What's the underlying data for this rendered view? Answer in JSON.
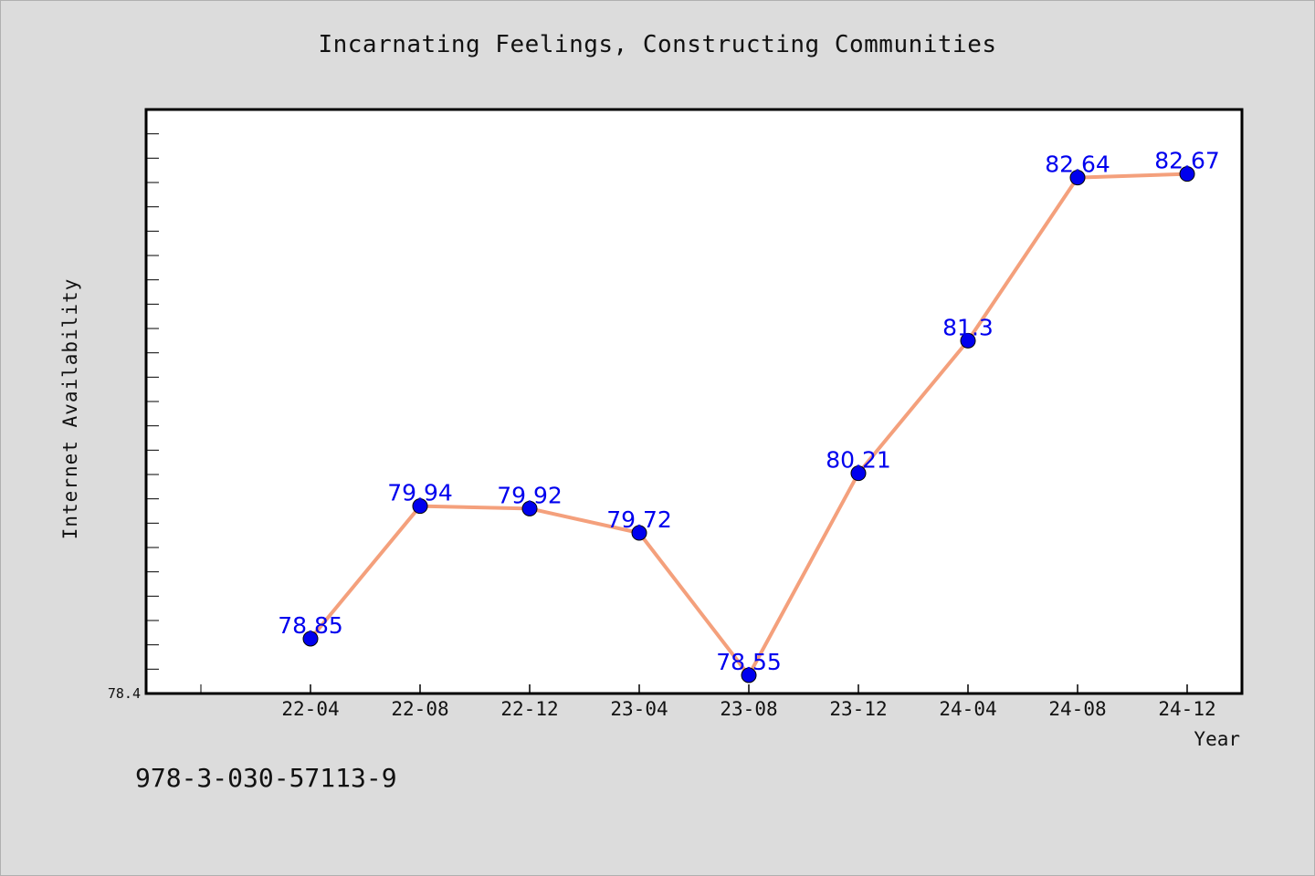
{
  "chart_data": {
    "type": "line",
    "title": "Incarnating Feelings, Constructing Communities",
    "xlabel": "Year",
    "ylabel": "Internet Availability",
    "categories": [
      "22-04",
      "22-08",
      "22-12",
      "23-04",
      "23-08",
      "23-12",
      "24-04",
      "24-08",
      "24-12"
    ],
    "series": [
      {
        "values": [
          78.85,
          79.94,
          79.92,
          79.72,
          78.55,
          80.21,
          81.3,
          82.64,
          82.67
        ]
      }
    ],
    "ylim": [
      78.4,
      83.2
    ],
    "yticks_labeled": [
      "78.4"
    ],
    "grid": false,
    "line_color": "#f4a07c",
    "marker_color": "#0000ee",
    "label_color": "#0000ee",
    "plot_background": "#ffffff",
    "figure_background": "#dcdcdc"
  },
  "footer": {
    "isbn": "978-3-030-57113-9"
  }
}
